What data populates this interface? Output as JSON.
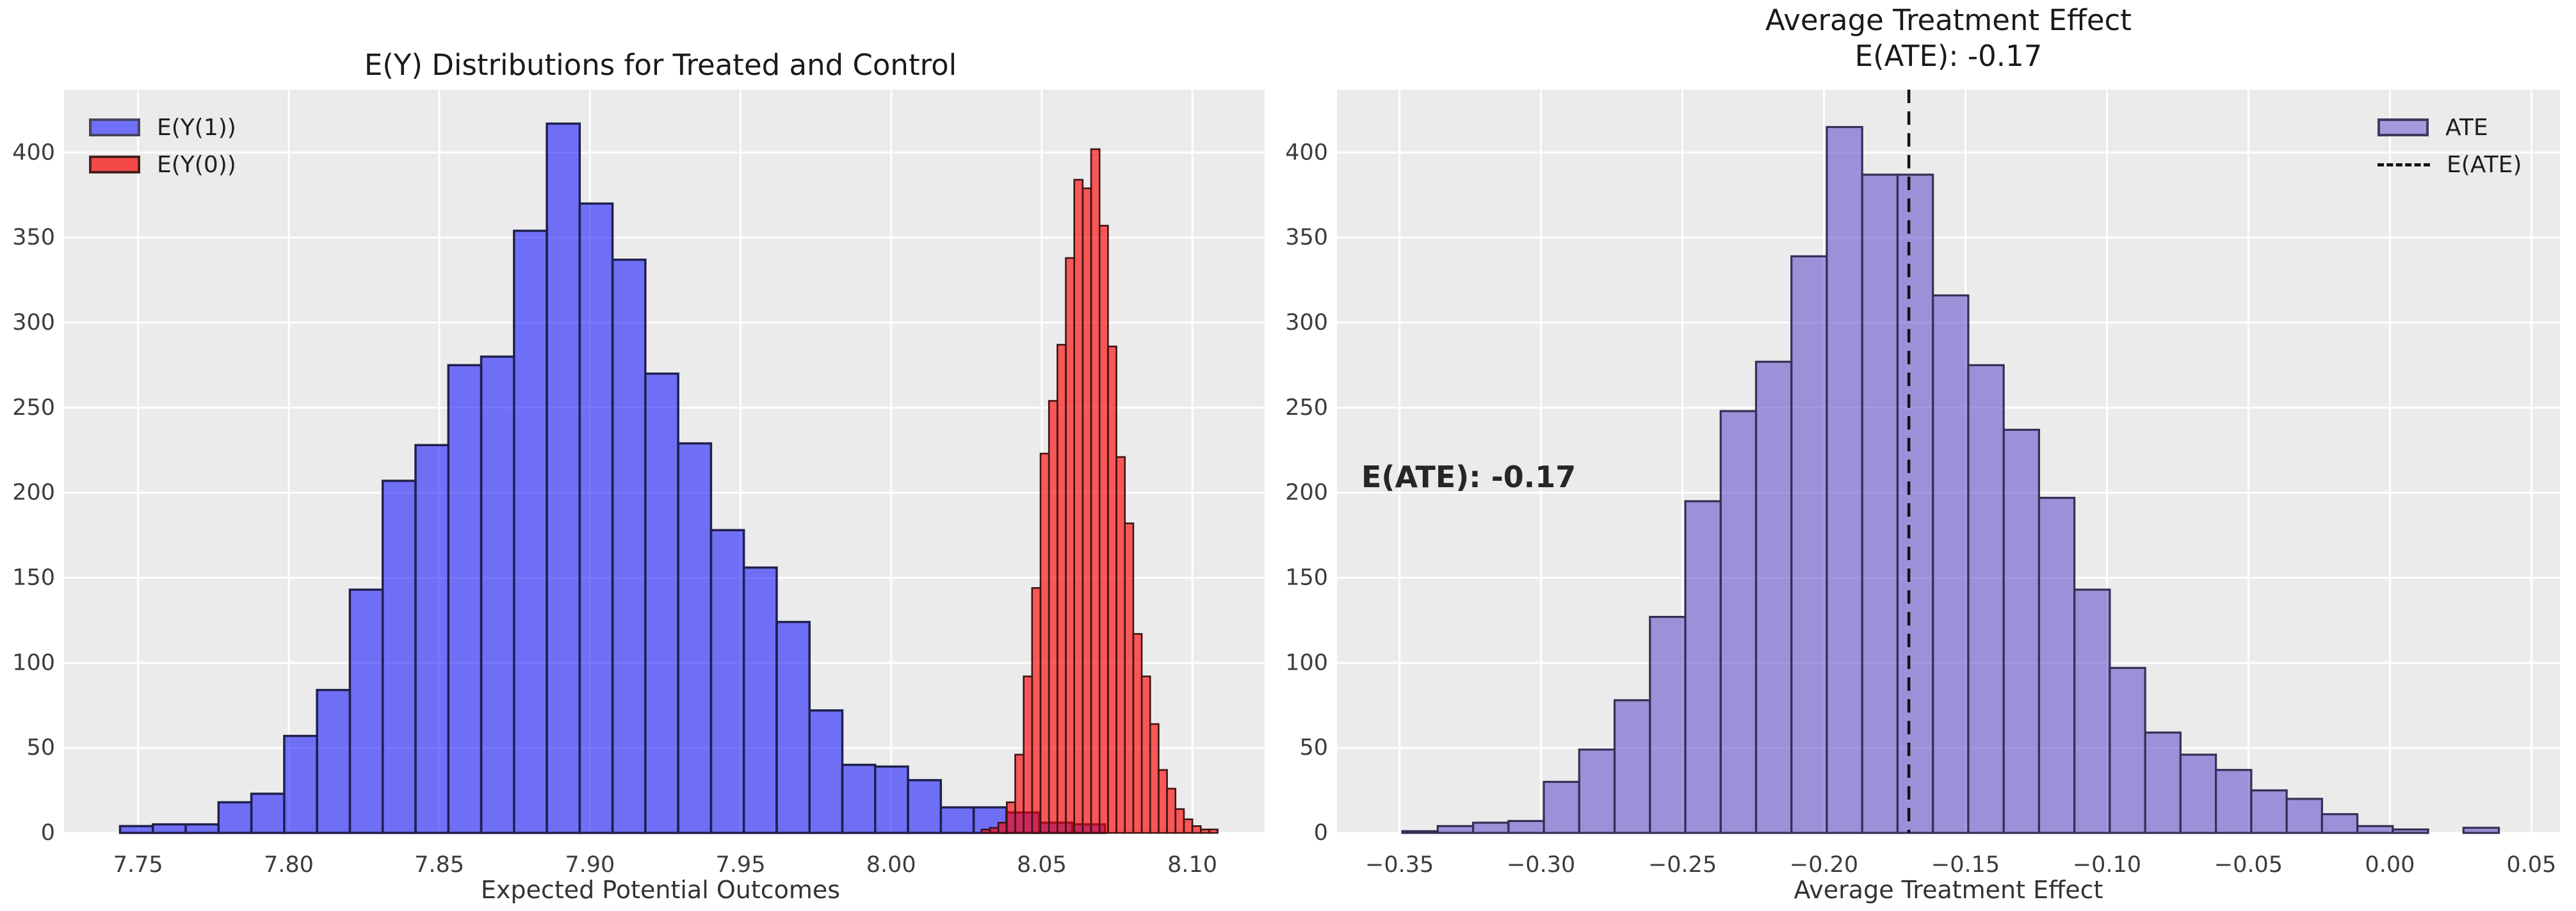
{
  "figure": {
    "background": "#ffffff",
    "panel_background": "#ebebeb",
    "grid_color": "#ffffff",
    "tick_label_color": "#3c3c3c",
    "title_color": "#1a1a1a"
  },
  "chart_data": [
    {
      "type": "bar",
      "subtype": "histogram",
      "title": "E(Y) Distributions for Treated and Control",
      "xlabel": "Expected Potential Outcomes",
      "ylabel": "",
      "xlim": [
        7.7254,
        8.124
      ],
      "ylim": [
        0,
        437
      ],
      "grid": true,
      "legend_position": "upper left",
      "xticks": [
        7.75,
        7.8,
        7.85,
        7.9,
        7.95,
        8.0,
        8.05,
        8.1
      ],
      "xtick_labels": [
        "7.75",
        "7.80",
        "7.85",
        "7.90",
        "7.95",
        "8.00",
        "8.05",
        "8.10"
      ],
      "yticks": [
        0,
        50,
        100,
        150,
        200,
        250,
        300,
        350,
        400
      ],
      "ytick_labels": [
        "0",
        "50",
        "100",
        "150",
        "200",
        "250",
        "300",
        "350",
        "400"
      ],
      "series": [
        {
          "name": "E(Y(1))",
          "bin_start": 7.744,
          "bin_width": 0.0109,
          "counts": [
            4,
            5,
            5,
            18,
            23,
            57,
            84,
            143,
            207,
            228,
            275,
            280,
            354,
            417,
            370,
            337,
            270,
            229,
            178,
            156,
            124,
            72,
            40,
            39,
            31,
            15,
            15,
            12,
            6,
            5
          ],
          "fill": "#0000ff",
          "fill_opacity": 0.53,
          "edge": "#20204d",
          "edge_width": 3.5,
          "legend_color": "#6f6ff8",
          "legend_edge": "#45455f"
        },
        {
          "name": "E(Y(0))",
          "bin_start": 8.03,
          "bin_width": 0.0028,
          "counts": [
            2,
            3,
            6,
            18,
            46,
            92,
            144,
            223,
            254,
            287,
            338,
            384,
            379,
            402,
            357,
            286,
            221,
            182,
            117,
            92,
            64,
            37,
            26,
            14,
            8,
            4,
            2,
            2
          ],
          "fill": "#ff0000",
          "fill_opacity": 0.63,
          "edge": "#3f1414",
          "edge_width": 2.6,
          "legend_color": "#f54848",
          "legend_edge": "#4a2121"
        }
      ]
    },
    {
      "type": "bar",
      "subtype": "histogram",
      "title": "Average Treatment Effect\nE(ATE): -0.17",
      "title_lines": [
        "Average Treatment Effect",
        "E(ATE): -0.17"
      ],
      "xlabel": "Average Treatment Effect",
      "ylabel": "",
      "xlim": [
        -0.3721,
        0.0601
      ],
      "ylim": [
        0,
        437
      ],
      "grid": true,
      "legend_position": "upper right",
      "xticks": [
        -0.35,
        -0.3,
        -0.25,
        -0.2,
        -0.15,
        -0.1,
        -0.05,
        0.0,
        0.05
      ],
      "xtick_labels": [
        "−0.35",
        "−0.30",
        "−0.25",
        "−0.20",
        "−0.15",
        "−0.10",
        "−0.05",
        "0.00",
        "0.05"
      ],
      "yticks": [
        0,
        50,
        100,
        150,
        200,
        250,
        300,
        350,
        400
      ],
      "ytick_labels": [
        "0",
        "50",
        "100",
        "150",
        "200",
        "250",
        "300",
        "350",
        "400"
      ],
      "series": [
        {
          "name": "ATE",
          "bin_start": -0.349,
          "bin_width": 0.0125,
          "counts": [
            1,
            4,
            6,
            7,
            30,
            49,
            78,
            127,
            195,
            248,
            277,
            339,
            415,
            387,
            387,
            316,
            275,
            237,
            197,
            143,
            97,
            59,
            46,
            37,
            25,
            20,
            11,
            4,
            2,
            0,
            3
          ],
          "fill": "#6a5acd",
          "fill_opacity": 0.62,
          "edge": "#343055",
          "edge_width": 3.2,
          "legend_color": "#a49add",
          "legend_edge": "#3f3a5e"
        }
      ],
      "vline": {
        "x": -0.17,
        "label": "E(ATE)",
        "color": "#111111",
        "style": "dashed"
      },
      "annotation": {
        "text": "E(ATE): -0.17",
        "x": -0.362,
        "y": 209
      }
    }
  ]
}
